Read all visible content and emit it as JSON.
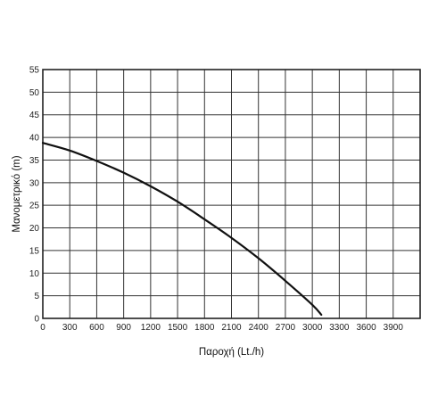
{
  "chart_data": {
    "type": "line",
    "title": "",
    "xlabel": "Παροχή (Lt./h)",
    "ylabel": "Μανομετρικό (m)",
    "xlim": [
      0,
      4200
    ],
    "ylim": [
      0,
      55
    ],
    "x_ticks": [
      0,
      300,
      600,
      900,
      1200,
      1500,
      1800,
      2100,
      2400,
      2700,
      3000,
      3300,
      3600,
      3900
    ],
    "x_tick_labels": [
      "0",
      "300",
      "600",
      "900",
      "1200",
      "1500",
      "1800",
      "2100",
      "2400",
      "2700",
      "3000",
      "3300",
      "3600",
      "3900"
    ],
    "y_ticks": [
      0,
      5,
      10,
      15,
      20,
      25,
      30,
      35,
      40,
      45,
      50,
      55
    ],
    "y_tick_labels": [
      "0",
      "5",
      "10",
      "15",
      "20",
      "25",
      "30",
      "35",
      "40",
      "45",
      "50",
      "55"
    ],
    "grid": true,
    "legend": "none",
    "series": [
      {
        "color": "#111111",
        "x": [
          0,
          300,
          600,
          900,
          1200,
          1500,
          1800,
          2100,
          2400,
          2700,
          3000,
          3100
        ],
        "y": [
          38.8,
          37.1,
          34.8,
          32.2,
          29.2,
          25.8,
          21.9,
          17.8,
          13.3,
          8.3,
          3.0,
          0.8
        ]
      }
    ]
  }
}
